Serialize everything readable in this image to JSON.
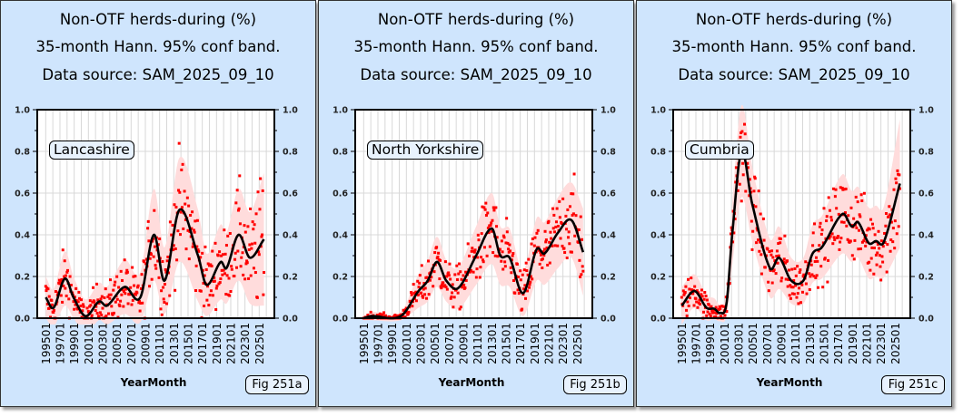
{
  "common": {
    "title_line1": "Non-OTF herds-during (%)",
    "title_line2": "35-month Hann. 95% conf band.",
    "title_line3": "Data source: SAM_2025_09_10",
    "xlabel": "YearMonth"
  },
  "colors": {
    "panel_bg": "#cfe5fd",
    "band": "#ffdcdc",
    "points": "#ff0000",
    "curve": "#000000",
    "grid": "#d8d8d8"
  },
  "chart_data": [
    {
      "type": "line",
      "region": "Lancashire",
      "fig": "Fig 251a",
      "ylim": [
        0,
        1.0
      ],
      "yticks": [
        "0.0",
        "0.2",
        "0.4",
        "0.6",
        "0.8",
        "1.0"
      ],
      "xticks": [
        "199501",
        "199701",
        "199901",
        "200101",
        "200301",
        "200501",
        "200701",
        "200901",
        "201101",
        "201301",
        "201501",
        "201701",
        "201901",
        "202101",
        "202301",
        "202501"
      ],
      "smoothed": [
        [
          1995,
          0.1,
          0.1
        ],
        [
          1996.1,
          0.05,
          0.09
        ],
        [
          1997.7,
          0.19,
          0.13
        ],
        [
          1998.9,
          0.1,
          0.1
        ],
        [
          2000.6,
          0.01,
          0.08
        ],
        [
          2002.5,
          0.08,
          0.09
        ],
        [
          2003.6,
          0.06,
          0.09
        ],
        [
          2006.1,
          0.15,
          0.13
        ],
        [
          2008.3,
          0.1,
          0.12
        ],
        [
          2010.2,
          0.4,
          0.22
        ],
        [
          2011.7,
          0.18,
          0.16
        ],
        [
          2013.8,
          0.52,
          0.25
        ],
        [
          2016.4,
          0.3,
          0.22
        ],
        [
          2017.6,
          0.16,
          0.15
        ],
        [
          2019.6,
          0.27,
          0.18
        ],
        [
          2020.4,
          0.24,
          0.17
        ],
        [
          2022.1,
          0.4,
          0.22
        ],
        [
          2023.7,
          0.29,
          0.22
        ],
        [
          2025.7,
          0.38,
          0.32
        ]
      ]
    },
    {
      "type": "line",
      "region": "North Yorkshire",
      "fig": "Fig 251b",
      "ylim": [
        0,
        1.0
      ],
      "yticks": [
        "0.0",
        "0.2",
        "0.4",
        "0.6",
        "0.8",
        "1.0"
      ],
      "xticks": [
        "199501",
        "199701",
        "199901",
        "200101",
        "200301",
        "200501",
        "200701",
        "200901",
        "201101",
        "201301",
        "201501",
        "201701",
        "201901",
        "202101",
        "202301",
        "202501"
      ],
      "smoothed": [
        [
          1995,
          0.0,
          0.01
        ],
        [
          1996.1,
          0.01,
          0.02
        ],
        [
          2000.2,
          0.01,
          0.02
        ],
        [
          2002.7,
          0.13,
          0.08
        ],
        [
          2004,
          0.18,
          0.1
        ],
        [
          2005.3,
          0.27,
          0.12
        ],
        [
          2006.6,
          0.18,
          0.1
        ],
        [
          2008.3,
          0.145,
          0.1
        ],
        [
          2010.8,
          0.3,
          0.14
        ],
        [
          2013,
          0.43,
          0.17
        ],
        [
          2014.2,
          0.3,
          0.14
        ],
        [
          2015.5,
          0.29,
          0.14
        ],
        [
          2017.4,
          0.12,
          0.11
        ],
        [
          2019.3,
          0.33,
          0.15
        ],
        [
          2020.4,
          0.31,
          0.15
        ],
        [
          2022.3,
          0.41,
          0.17
        ],
        [
          2024.2,
          0.47,
          0.18
        ],
        [
          2025.9,
          0.31,
          0.21
        ]
      ]
    },
    {
      "type": "line",
      "region": "Cumbria",
      "fig": "Fig 251c",
      "ylim": [
        0,
        1.0
      ],
      "yticks": [
        "0.0",
        "0.2",
        "0.4",
        "0.6",
        "0.8",
        "1.0"
      ],
      "xticks": [
        "199501",
        "199701",
        "199901",
        "200101",
        "200301",
        "200501",
        "200701",
        "200901",
        "201101",
        "201301",
        "201501",
        "201701",
        "201901",
        "202101",
        "202301",
        "202501"
      ],
      "smoothed": [
        [
          1995,
          0.06,
          0.09
        ],
        [
          1996.8,
          0.13,
          0.08
        ],
        [
          1998.5,
          0.05,
          0.06
        ],
        [
          1999.6,
          0.045,
          0.05
        ],
        [
          2000.4,
          0.025,
          0.04
        ],
        [
          2001.3,
          0.07,
          0.06
        ],
        [
          2002.1,
          0.4,
          0.15
        ],
        [
          2003.4,
          0.8,
          0.22
        ],
        [
          2004.9,
          0.55,
          0.18
        ],
        [
          2007.4,
          0.24,
          0.14
        ],
        [
          2008.7,
          0.29,
          0.15
        ],
        [
          2010.4,
          0.18,
          0.11
        ],
        [
          2012.1,
          0.18,
          0.11
        ],
        [
          2013.4,
          0.31,
          0.14
        ],
        [
          2014.7,
          0.34,
          0.15
        ],
        [
          2017.6,
          0.5,
          0.19
        ],
        [
          2018.9,
          0.44,
          0.17
        ],
        [
          2019.8,
          0.46,
          0.17
        ],
        [
          2021.3,
          0.36,
          0.17
        ],
        [
          2022.3,
          0.37,
          0.17
        ],
        [
          2023.4,
          0.365,
          0.17
        ],
        [
          2025.7,
          0.65,
          0.31
        ]
      ]
    }
  ]
}
